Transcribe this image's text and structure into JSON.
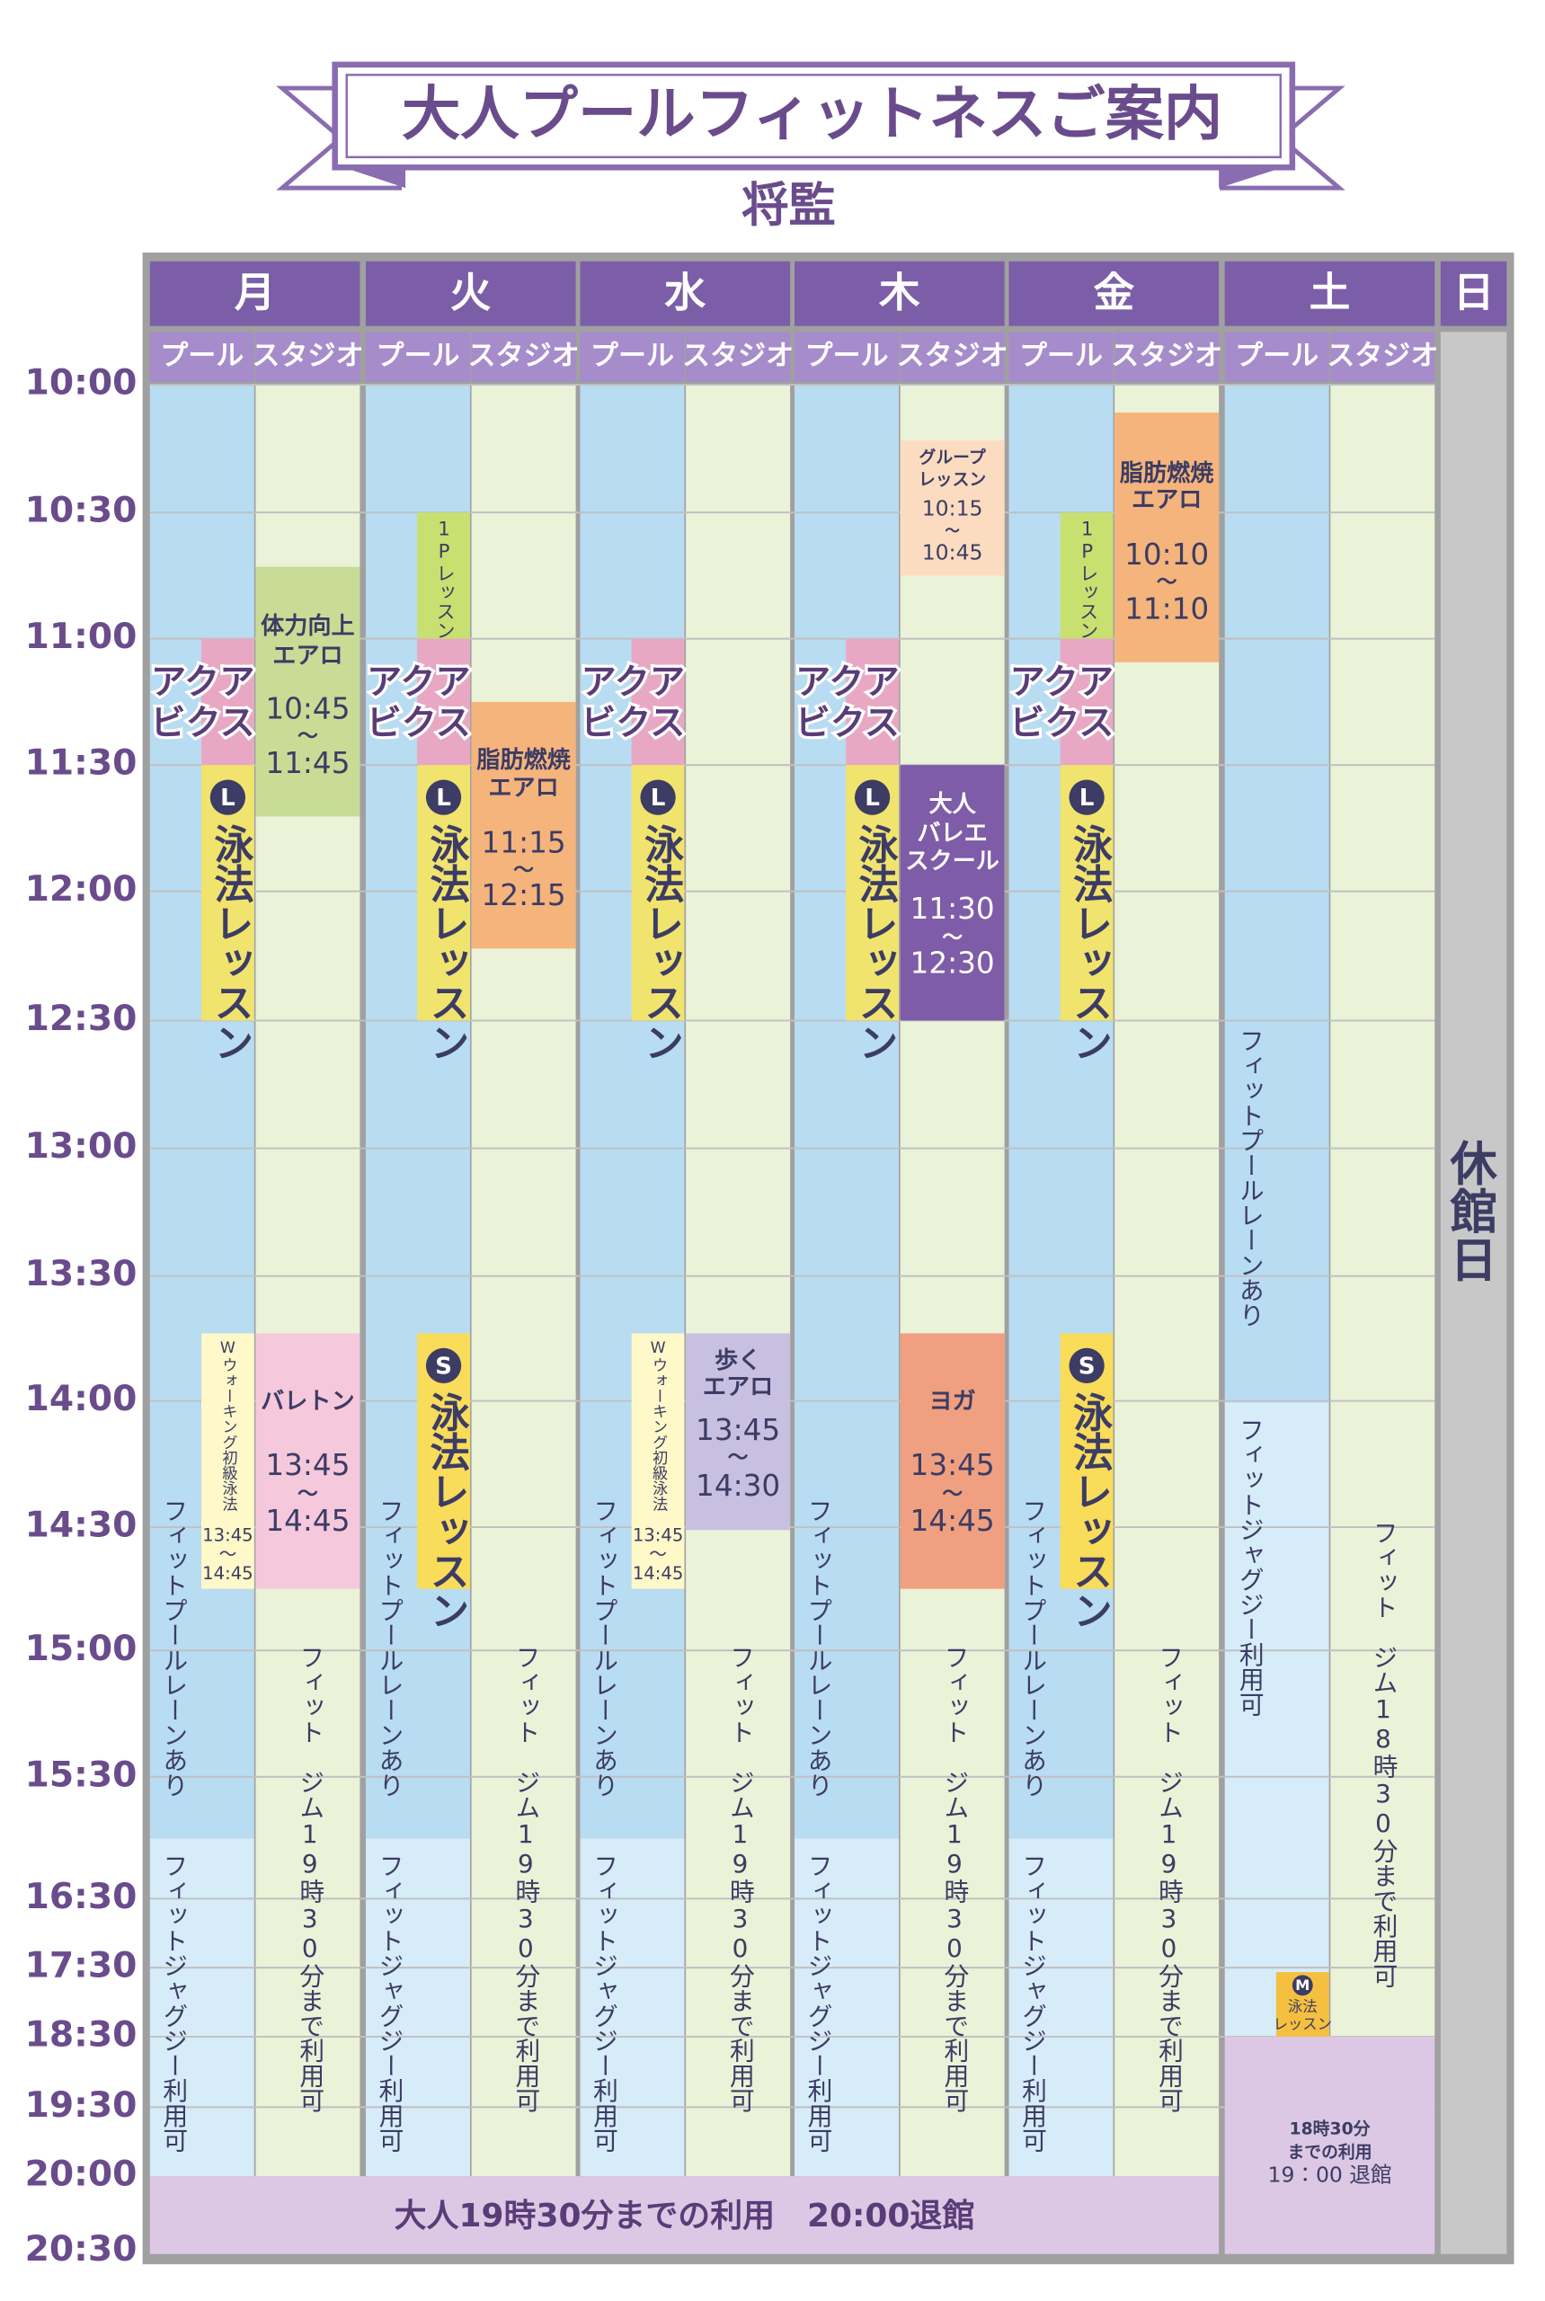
{
  "title": "大人プールフィットネスご案内",
  "subtitle": "将監",
  "times": [
    "10:00",
    "10:30",
    "11:00",
    "11:30",
    "12:00",
    "12:30",
    "13:00",
    "13:30",
    "14:00",
    "14:30",
    "15:00",
    "15:30",
    "16:30",
    "17:30",
    "18:30",
    "19:30",
    "20:00",
    "20:30"
  ],
  "days": [
    {
      "name": "月",
      "columns": [
        "プール",
        "スタジオ"
      ],
      "events": [
        {
          "lines": [
            "アクア",
            "ビクス"
          ]
        },
        {
          "badge": "L",
          "text": "泳法レッスン"
        },
        {
          "lines": [
            "体力向上",
            "エアロ",
            "10:45",
            "〜",
            "11:45"
          ]
        },
        {
          "text": "Wウォーキング初級泳法",
          "lines": [
            "13:45",
            "〜",
            "14:45"
          ]
        },
        {
          "lines": [
            "バレトン",
            "13:45",
            "〜",
            "14:45"
          ]
        },
        {
          "text": "フィットプールレーンあり"
        },
        {
          "text": "フィットジャグジー利用可"
        },
        {
          "text": "フィット　ジム19時30分まで利用可"
        }
      ]
    },
    {
      "name": "火",
      "columns": [
        "プール",
        "スタジオ"
      ],
      "events": [
        {
          "text": "1Pレッスン"
        },
        {
          "lines": [
            "アクア",
            "ビクス"
          ]
        },
        {
          "badge": "L",
          "text": "泳法レッスン"
        },
        {
          "lines": [
            "脂肪燃焼",
            "エアロ",
            "11:15",
            "〜",
            "12:15"
          ]
        },
        {
          "badge": "S",
          "text": "泳法レッスン"
        },
        {
          "text": "フィットプールレーンあり"
        },
        {
          "text": "フィットジャグジー利用可"
        },
        {
          "text": "フィット　ジム19時30分まで利用可"
        }
      ]
    },
    {
      "name": "水",
      "columns": [
        "プール",
        "スタジオ"
      ],
      "events": [
        {
          "lines": [
            "アクア",
            "ビクス"
          ]
        },
        {
          "badge": "L",
          "text": "泳法レッスン"
        },
        {
          "lines": [
            "歩く",
            "エアロ",
            "13:45",
            "〜",
            "14:30"
          ]
        },
        {
          "text": "Wウォーキング初級泳法",
          "lines": [
            "13:45",
            "〜",
            "14:45"
          ]
        },
        {
          "text": "フィットプールレーンあり"
        },
        {
          "text": "フィットジャグジー利用可"
        },
        {
          "text": "フィット　ジム19時30分まで利用可"
        }
      ]
    },
    {
      "name": "木",
      "columns": [
        "プール",
        "スタジオ"
      ],
      "events": [
        {
          "lines": [
            "グループ",
            "レッスン",
            "10:15",
            "〜",
            "10:45"
          ]
        },
        {
          "lines": [
            "アクア",
            "ビクス"
          ]
        },
        {
          "badge": "L",
          "text": "泳法レッスン"
        },
        {
          "lines": [
            "大人",
            "バレエ",
            "スクール",
            "11:30",
            "〜",
            "12:30"
          ]
        },
        {
          "lines": [
            "ヨガ",
            "13:45",
            "〜",
            "14:45"
          ]
        },
        {
          "text": "フィットプールレーンあり"
        },
        {
          "text": "フィットジャグジー利用可"
        },
        {
          "text": "フィット　ジム19時30分まで利用可"
        }
      ]
    },
    {
      "name": "金",
      "columns": [
        "プール",
        "スタジオ"
      ],
      "events": [
        {
          "lines": [
            "脂肪燃焼",
            "エアロ",
            "10:10",
            "〜",
            "11:10"
          ]
        },
        {
          "text": "1Pレッスン"
        },
        {
          "lines": [
            "アクア",
            "ビクス"
          ]
        },
        {
          "badge": "L",
          "text": "泳法レッスン"
        },
        {
          "badge": "S",
          "text": "泳法レッスン"
        },
        {
          "text": "フィットプールレーンあり"
        },
        {
          "text": "フィットジャグジー利用可"
        },
        {
          "text": "フィット　ジム19時30分まで利用可"
        }
      ]
    },
    {
      "name": "土",
      "columns": [
        "プール",
        "スタジオ"
      ],
      "events": [
        {
          "text": "フィットプールレーンあり"
        },
        {
          "text": "フィットジャグジー利用可"
        },
        {
          "badge": "M",
          "lines": [
            "泳法",
            "レッスン"
          ]
        },
        {
          "text": "フィット　ジム18時30分まで利用可"
        },
        {
          "lines": [
            "18時30分",
            "までの利用",
            "19：00 退館"
          ]
        }
      ]
    },
    {
      "name": "日",
      "closed": [
        "休",
        "館",
        "日"
      ]
    }
  ],
  "footer": "大人19時30分までの利用　20:00退館"
}
